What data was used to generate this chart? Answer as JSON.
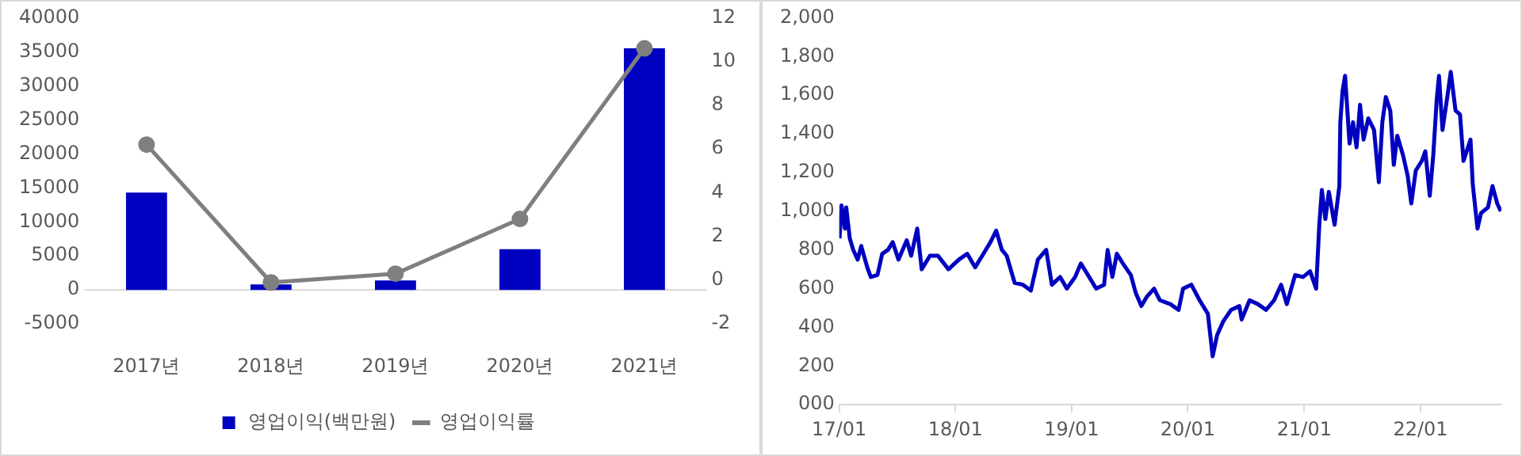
{
  "chart_data": [
    {
      "type": "bar",
      "categories": [
        "2017년",
        "2018년",
        "2019년",
        "2020년",
        "2021년"
      ],
      "series": [
        {
          "name": "영업이익(백만원)",
          "color": "#0000c0",
          "values": [
            14300,
            800,
            1400,
            6000,
            35500
          ]
        },
        {
          "name": "영업이익률",
          "type": "line",
          "axis": "y2",
          "color": "#7f7f7f",
          "values": [
            6.2,
            -0.1,
            0.3,
            2.8,
            10.6
          ]
        }
      ],
      "ylim": [
        -5000,
        40000
      ],
      "yticks": [
        -5000,
        0,
        5000,
        10000,
        15000,
        20000,
        25000,
        30000,
        35000,
        40000
      ],
      "y2lim": [
        -2,
        12
      ],
      "y2ticks": [
        -2,
        0,
        2,
        4,
        6,
        8,
        10,
        12
      ],
      "ref_lines": [
        {
          "axis": "y",
          "value": 0,
          "color": "#d9d9d9"
        }
      ],
      "grid": false,
      "legend": "bottom",
      "marker": "circle"
    },
    {
      "type": "line",
      "x": [
        "2017-01-02",
        "2017-01-08",
        "2017-01-19",
        "2017-01-23",
        "2017-02-03",
        "2017-02-14",
        "2017-02-28",
        "2017-03-11",
        "2017-03-30",
        "2017-04-10",
        "2017-05-01",
        "2017-05-16",
        "2017-06-03",
        "2017-06-18",
        "2017-07-06",
        "2017-08-01",
        "2017-08-15",
        "2017-09-03",
        "2017-09-17",
        "2017-10-13",
        "2017-11-07",
        "2017-12-10",
        "2018-01-12",
        "2018-02-07",
        "2018-03-04",
        "2018-03-30",
        "2018-04-21",
        "2018-05-09",
        "2018-05-27",
        "2018-06-11",
        "2018-07-06",
        "2018-08-01",
        "2018-08-26",
        "2018-09-17",
        "2018-10-13",
        "2018-10-31",
        "2018-11-26",
        "2018-12-17",
        "2019-01-12",
        "2019-01-30",
        "2019-02-25",
        "2019-03-19",
        "2019-04-13",
        "2019-04-24",
        "2019-05-09",
        "2019-05-23",
        "2019-06-11",
        "2019-07-06",
        "2019-07-21",
        "2019-08-08",
        "2019-08-26",
        "2019-09-17",
        "2019-10-05",
        "2019-11-07",
        "2019-12-03",
        "2019-12-17",
        "2020-01-12",
        "2020-02-07",
        "2020-03-04",
        "2020-03-19",
        "2020-04-02",
        "2020-04-21",
        "2020-05-16",
        "2020-06-11",
        "2020-06-18",
        "2020-07-13",
        "2020-08-08",
        "2020-09-03",
        "2020-09-28",
        "2020-10-20",
        "2020-11-07",
        "2020-12-03",
        "2020-12-28",
        "2021-01-19",
        "2021-02-07",
        "2021-02-17",
        "2021-02-25",
        "2021-03-08",
        "2021-03-19",
        "2021-04-06",
        "2021-04-21",
        "2021-04-24",
        "2021-05-01",
        "2021-05-09",
        "2021-05-23",
        "2021-06-03",
        "2021-06-14",
        "2021-06-25",
        "2021-07-06",
        "2021-07-21",
        "2021-08-08",
        "2021-08-23",
        "2021-09-03",
        "2021-09-14",
        "2021-09-28",
        "2021-10-09",
        "2021-10-20",
        "2021-11-07",
        "2021-11-22",
        "2021-12-03",
        "2021-12-17",
        "2022-01-05",
        "2022-01-16",
        "2022-01-30",
        "2022-02-10",
        "2022-02-21",
        "2022-02-28",
        "2022-03-11",
        "2022-03-26",
        "2022-04-06",
        "2022-04-21",
        "2022-05-05",
        "2022-05-16",
        "2022-06-07",
        "2022-06-14",
        "2022-06-29",
        "2022-07-10",
        "2022-08-01",
        "2022-08-15",
        "2022-08-30",
        "2022-09-10"
      ],
      "series": [
        {
          "color": "#0000c0",
          "values": [
            860,
            1030,
            910,
            1020,
            860,
            800,
            750,
            820,
            710,
            660,
            670,
            780,
            800,
            840,
            750,
            850,
            770,
            910,
            700,
            770,
            770,
            700,
            750,
            780,
            710,
            780,
            840,
            900,
            800,
            770,
            630,
            620,
            590,
            750,
            800,
            620,
            660,
            600,
            660,
            730,
            660,
            600,
            620,
            800,
            660,
            780,
            730,
            670,
            580,
            510,
            560,
            600,
            540,
            520,
            490,
            600,
            620,
            540,
            470,
            250,
            360,
            430,
            490,
            510,
            440,
            540,
            520,
            490,
            540,
            620,
            520,
            670,
            660,
            690,
            600,
            930,
            1110,
            960,
            1100,
            930,
            1130,
            1460,
            1620,
            1700,
            1350,
            1460,
            1330,
            1550,
            1370,
            1480,
            1420,
            1150,
            1460,
            1590,
            1520,
            1240,
            1390,
            1290,
            1180,
            1040,
            1210,
            1260,
            1310,
            1080,
            1290,
            1580,
            1700,
            1420,
            1590,
            1720,
            1520,
            1500,
            1260,
            1370,
            1140,
            910,
            990,
            1020,
            1130,
            1040,
            1000
          ]
        }
      ],
      "xlim": [
        "2017-01-01",
        "2022-09-12"
      ],
      "xticks": [
        {
          "value": "2017-01-01",
          "label": "17/01"
        },
        {
          "value": "2018-01-01",
          "label": "18/01"
        },
        {
          "value": "2019-01-01",
          "label": "19/01"
        },
        {
          "value": "2020-01-01",
          "label": "20/01"
        },
        {
          "value": "2021-01-01",
          "label": "21/01"
        },
        {
          "value": "2022-01-01",
          "label": "22/01"
        }
      ],
      "ylim": [
        0,
        2000
      ],
      "yticks": [
        {
          "value": 0,
          "label": "000"
        },
        200,
        400,
        600,
        800,
        {
          "value": 1000,
          "label": "1,000"
        },
        {
          "value": 1200,
          "label": "1,200"
        },
        {
          "value": 1400,
          "label": "1,400"
        },
        {
          "value": 1600,
          "label": "1,600"
        },
        {
          "value": 1800,
          "label": "1,800"
        },
        {
          "value": 2000,
          "label": "2,000"
        }
      ],
      "grid": false,
      "legend": false,
      "marker": "none"
    }
  ]
}
